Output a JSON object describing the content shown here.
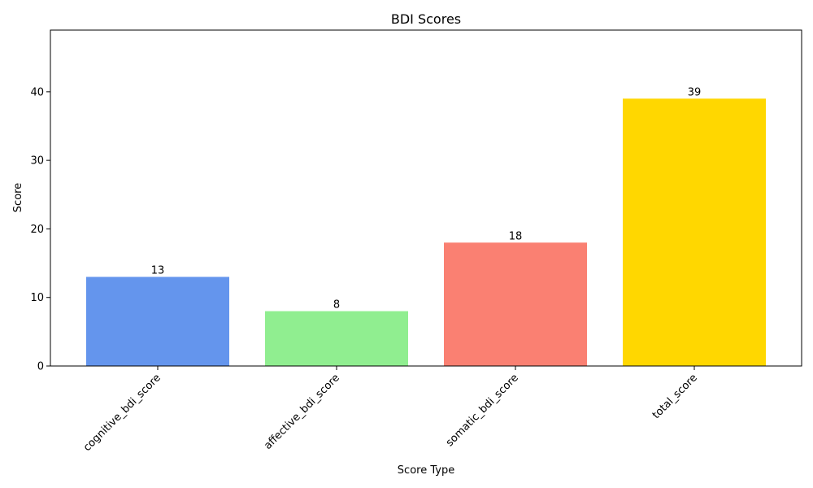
{
  "chart_data": {
    "type": "bar",
    "title": "BDI Scores",
    "xlabel": "Score Type",
    "ylabel": "Score",
    "categories": [
      "cognitive_bdi_score",
      "affective_bdi_score",
      "somatic_bdi_score",
      "total_score"
    ],
    "values": [
      13,
      8,
      18,
      39
    ],
    "colors": [
      "#6495ED",
      "#90EE90",
      "#FA8072",
      "#FFD700"
    ],
    "ylim": [
      0,
      49
    ],
    "yticks": [
      0,
      10,
      20,
      30,
      40
    ],
    "grid": false,
    "legend": "none"
  }
}
